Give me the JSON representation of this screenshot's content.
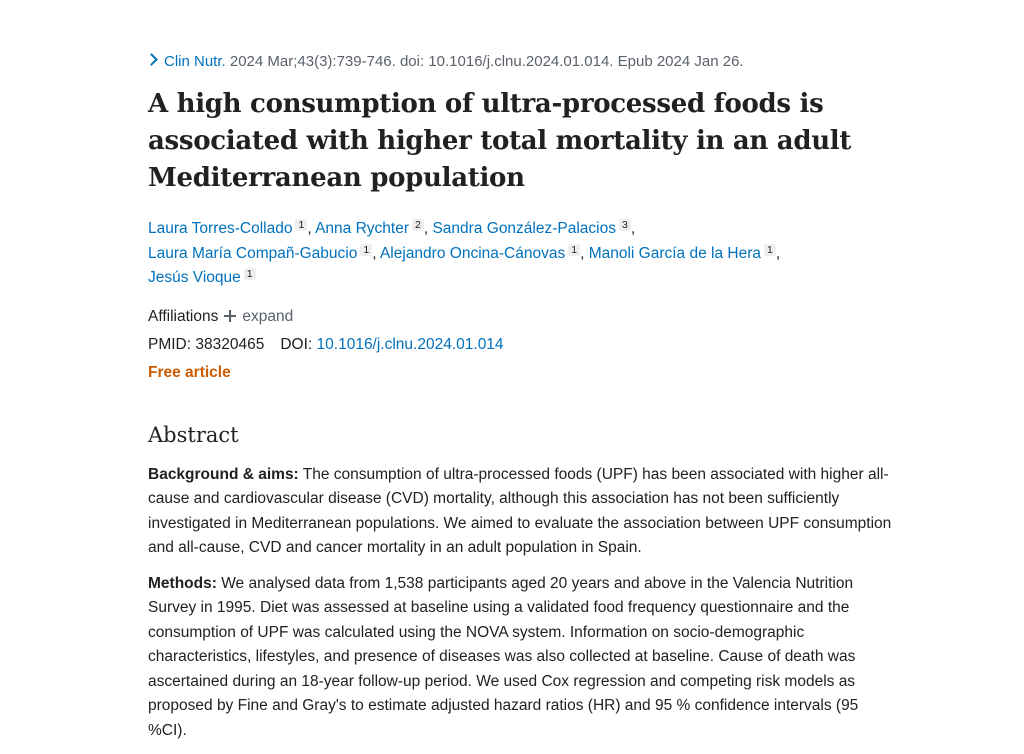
{
  "citation": {
    "journal": "Clin Nutr.",
    "details": " 2024 Mar;43(3):739-746. doi: 10.1016/j.clnu.2024.01.014. Epub 2024 Jan 26."
  },
  "title": "A high consumption of ultra-processed foods is associated with higher total mortality in an adult Mediterranean population",
  "authors": [
    {
      "name": "Laura Torres-Collado",
      "aff": "1"
    },
    {
      "name": "Anna Rychter",
      "aff": "2"
    },
    {
      "name": "Sandra González-Palacios",
      "aff": "3"
    },
    {
      "name": "Laura María Compañ-Gabucio",
      "aff": "1"
    },
    {
      "name": "Alejandro Oncina-Cánovas",
      "aff": "1"
    },
    {
      "name": "Manoli García de la Hera",
      "aff": "1"
    },
    {
      "name": "Jesús Vioque",
      "aff": "1"
    }
  ],
  "affiliations": {
    "label": "Affiliations",
    "expand_label": "expand"
  },
  "ids": {
    "pmid_label": "PMID:",
    "pmid": "38320465",
    "doi_label": "DOI:",
    "doi": "10.1016/j.clnu.2024.01.014"
  },
  "free_article": "Free article",
  "abstract": {
    "heading": "Abstract",
    "background_label": "Background & aims:",
    "background_text": " The consumption of ultra-processed foods (UPF) has been associated with higher all-cause and cardiovascular disease (CVD) mortality, although this association has not been sufficiently investigated in Mediterranean populations. We aimed to evaluate the association between UPF consumption and all-cause, CVD and cancer mortality in an adult population in Spain.",
    "methods_label": "Methods:",
    "methods_text": " We analysed data from 1,538 participants aged 20 years and above in the Valencia Nutrition Survey in 1995. Diet was assessed at baseline using a validated food frequency questionnaire and the consumption of UPF was calculated using the NOVA system. Information on socio-demographic characteristics, lifestyles, and presence of diseases was also collected at baseline. Cause of death was ascertained during an 18-year follow-up period. We used Cox regression and competing risk models as proposed by Fine and Gray's to estimate adjusted hazard ratios (HR) and 95 % confidence intervals (95 %CI)."
  }
}
